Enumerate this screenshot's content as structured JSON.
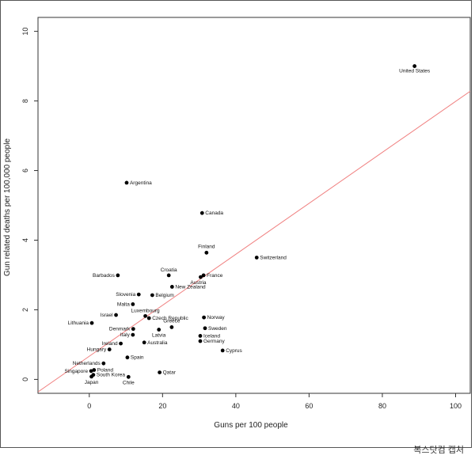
{
  "credit": "복스닷컴 캡처",
  "chart_data": {
    "type": "scatter",
    "xlabel": "Guns per 100 people",
    "ylabel": "Gun related deaths per 100,000 people",
    "xlim": [
      -14,
      104
    ],
    "ylim": [
      -0.4,
      10.4
    ],
    "xticks": [
      0,
      20,
      40,
      60,
      80,
      100
    ],
    "yticks": [
      0,
      2,
      4,
      6,
      8,
      10
    ],
    "grid": false,
    "point_color": "#000000",
    "fit_color": "#f08080",
    "fit_line": {
      "x": [
        -14,
        104
      ],
      "y": [
        -0.36,
        8.28
      ]
    },
    "points": [
      {
        "label": "United States",
        "x": 88.8,
        "y": 9.0
      },
      {
        "label": "Argentina",
        "x": 10.2,
        "y": 5.65
      },
      {
        "label": "Canada",
        "x": 30.8,
        "y": 4.78
      },
      {
        "label": "Finland",
        "x": 32.0,
        "y": 3.64
      },
      {
        "label": "Switzerland",
        "x": 45.7,
        "y": 3.5
      },
      {
        "label": "Croatia",
        "x": 21.7,
        "y": 2.99
      },
      {
        "label": "Barbados",
        "x": 7.8,
        "y": 2.99
      },
      {
        "label": "France",
        "x": 31.2,
        "y": 2.99
      },
      {
        "label": "Austria",
        "x": 30.4,
        "y": 2.94
      },
      {
        "label": "New Zealand",
        "x": 22.6,
        "y": 2.66
      },
      {
        "label": "Slovenia",
        "x": 13.5,
        "y": 2.44
      },
      {
        "label": "Belgium",
        "x": 17.2,
        "y": 2.42
      },
      {
        "label": "Malta",
        "x": 11.9,
        "y": 2.16
      },
      {
        "label": "Luxembourg",
        "x": 15.3,
        "y": 1.82
      },
      {
        "label": "Israel",
        "x": 7.3,
        "y": 1.85
      },
      {
        "label": "Czech Republic",
        "x": 16.3,
        "y": 1.76
      },
      {
        "label": "Lithuania",
        "x": 0.7,
        "y": 1.62
      },
      {
        "label": "Norway",
        "x": 31.3,
        "y": 1.78
      },
      {
        "label": "Greece",
        "x": 22.5,
        "y": 1.5
      },
      {
        "label": "Denmark",
        "x": 12.0,
        "y": 1.45
      },
      {
        "label": "Sweden",
        "x": 31.6,
        "y": 1.47
      },
      {
        "label": "Latvia",
        "x": 19.0,
        "y": 1.43
      },
      {
        "label": "Italy",
        "x": 11.9,
        "y": 1.28
      },
      {
        "label": "Iceland",
        "x": 30.3,
        "y": 1.25
      },
      {
        "label": "Ireland",
        "x": 8.6,
        "y": 1.03
      },
      {
        "label": "Australia",
        "x": 15.0,
        "y": 1.06
      },
      {
        "label": "Germany",
        "x": 30.3,
        "y": 1.1
      },
      {
        "label": "Hungary",
        "x": 5.5,
        "y": 0.86
      },
      {
        "label": "Cyprus",
        "x": 36.4,
        "y": 0.83
      },
      {
        "label": "Spain",
        "x": 10.4,
        "y": 0.63
      },
      {
        "label": "Netherlands",
        "x": 3.9,
        "y": 0.46
      },
      {
        "label": "Poland",
        "x": 1.3,
        "y": 0.27
      },
      {
        "label": "Singapore",
        "x": 0.5,
        "y": 0.24
      },
      {
        "label": "Qatar",
        "x": 19.2,
        "y": 0.2
      },
      {
        "label": "South Korea",
        "x": 1.1,
        "y": 0.13
      },
      {
        "label": "Japan",
        "x": 0.6,
        "y": 0.08
      },
      {
        "label": "Chile",
        "x": 10.7,
        "y": 0.07
      }
    ]
  }
}
